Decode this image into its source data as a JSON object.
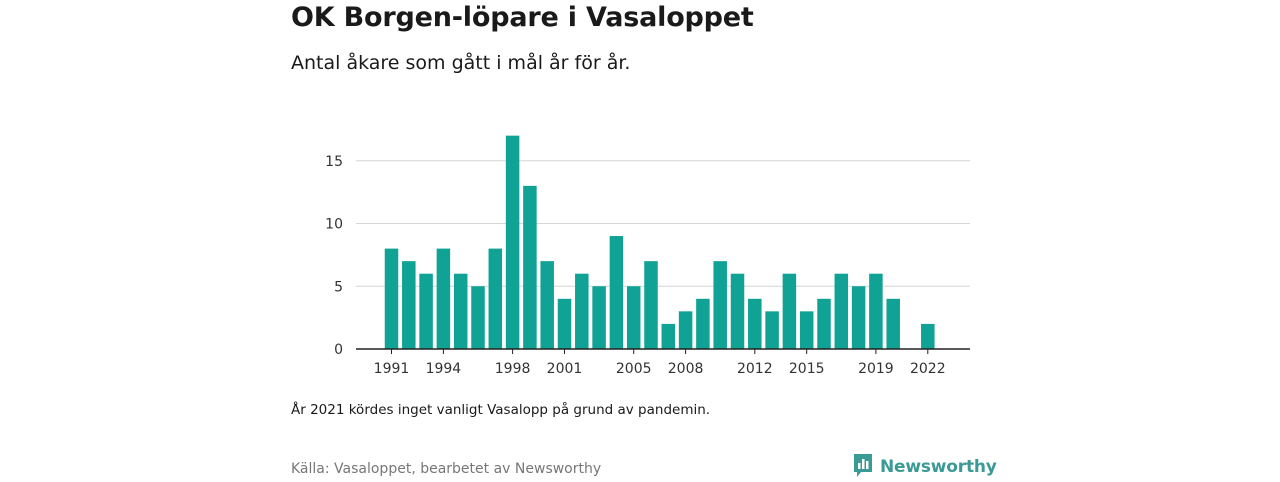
{
  "header": {
    "title": "OK Borgen-löpare i Vasaloppet",
    "subtitle": "Antal åkare som gått i mål år för år."
  },
  "footer": {
    "note": "År 2021 kördes inget vanligt Vasalopp på grund av pandemin.",
    "source": "Källa: Vasaloppet, bearbetet av Newsworthy",
    "brand": "Newsworthy",
    "brand_icon": "bar-chart-logo-icon",
    "brand_color": "#3a9a95"
  },
  "chart_data": {
    "type": "bar",
    "title": "OK Borgen-löpare i Vasaloppet",
    "subtitle": "Antal åkare som gått i mål år för år.",
    "xlabel": "",
    "ylabel": "",
    "categories": [
      1991,
      1992,
      1993,
      1994,
      1995,
      1996,
      1997,
      1998,
      1999,
      2000,
      2001,
      2002,
      2003,
      2004,
      2005,
      2006,
      2007,
      2008,
      2009,
      2010,
      2011,
      2012,
      2013,
      2014,
      2015,
      2016,
      2017,
      2018,
      2019,
      2020,
      2021,
      2022
    ],
    "values": [
      8,
      7,
      6,
      8,
      6,
      5,
      8,
      17,
      13,
      7,
      4,
      6,
      5,
      9,
      5,
      7,
      2,
      3,
      4,
      7,
      6,
      4,
      3,
      6,
      3,
      4,
      6,
      5,
      6,
      4,
      0,
      2
    ],
    "x_tick_labels": [
      "1991",
      "1994",
      "1998",
      "2001",
      "2005",
      "2008",
      "2012",
      "2015",
      "2019",
      "2022"
    ],
    "y_ticks": [
      0,
      5,
      10,
      15
    ],
    "ylim": [
      0,
      17.5
    ],
    "grid": true,
    "bar_color": "#0fa295"
  }
}
